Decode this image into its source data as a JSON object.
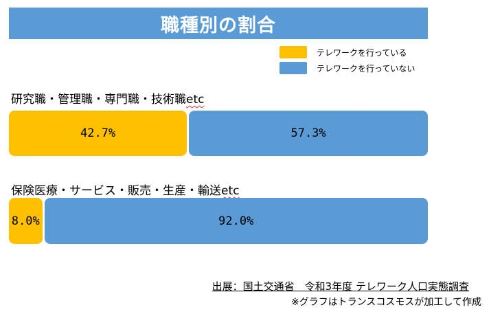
{
  "colors": {
    "telework": "#ffc000",
    "no_telework": "#5b9bd5",
    "title_bg": "#5b9bd5"
  },
  "chart_data": {
    "type": "bar",
    "orientation": "horizontal",
    "stacked": "100%",
    "title": "職種別の割合",
    "legend": [
      "テレワークを行っている",
      "テレワークを行っていない"
    ],
    "legend_position": "top-right",
    "categories": [
      {
        "label": "研究職・管理職・専門職・技術職",
        "suffix": "etc"
      },
      {
        "label": "保険医療・サービス・販売・生産・輸送",
        "suffix": "etc"
      }
    ],
    "series": [
      {
        "name": "テレワークを行っている",
        "values": [
          42.7,
          8.0
        ],
        "labels": [
          "42.7%",
          "8.0%"
        ]
      },
      {
        "name": "テレワークを行っていない",
        "values": [
          57.3,
          92.0
        ],
        "labels": [
          "57.3%",
          "92.0%"
        ]
      }
    ]
  },
  "source": "出展：国土交通省　令和3年度 テレワーク人口実態調査",
  "note": "※グラフはトランスコスモスが加工して作成"
}
